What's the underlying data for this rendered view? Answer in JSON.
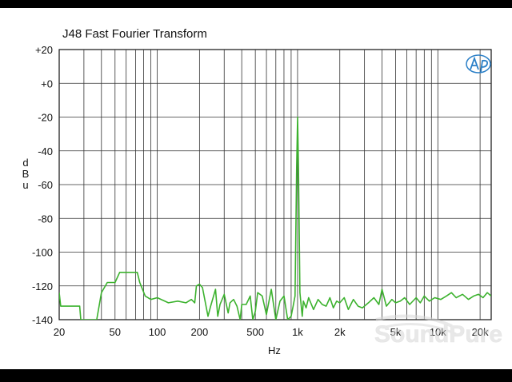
{
  "chart_data": {
    "type": "line",
    "title": "J48 Fast Fourier Transform",
    "xlabel": "Hz",
    "ylabel": "dBu",
    "x_scale": "log",
    "xlim": [
      20,
      24000
    ],
    "ylim": [
      -140,
      20
    ],
    "grid": true,
    "y_ticks": [
      {
        "value": 20,
        "label": "+20"
      },
      {
        "value": 0,
        "label": "+0"
      },
      {
        "value": -20,
        "label": "-20"
      },
      {
        "value": -40,
        "label": "-40"
      },
      {
        "value": -60,
        "label": "-60"
      },
      {
        "value": -80,
        "label": "-80"
      },
      {
        "value": -100,
        "label": "-100"
      },
      {
        "value": -120,
        "label": "-120"
      },
      {
        "value": -140,
        "label": "-140"
      }
    ],
    "x_ticks": [
      {
        "value": 20,
        "label": "20"
      },
      {
        "value": 50,
        "label": "50"
      },
      {
        "value": 100,
        "label": "100"
      },
      {
        "value": 200,
        "label": "200"
      },
      {
        "value": 500,
        "label": "500"
      },
      {
        "value": 1000,
        "label": "1k"
      },
      {
        "value": 2000,
        "label": "2k"
      },
      {
        "value": 5000,
        "label": "5k"
      },
      {
        "value": 10000,
        "label": "10k"
      },
      {
        "value": 20000,
        "label": "20k"
      }
    ],
    "series": [
      {
        "color": "#3cb22e",
        "x": [
          20,
          20.5,
          28,
          28.5,
          37,
          40,
          44,
          50,
          54,
          72,
          75,
          82,
          90,
          100,
          120,
          140,
          160,
          175,
          185,
          190,
          200,
          210,
          230,
          240,
          260,
          270,
          280,
          300,
          320,
          330,
          350,
          370,
          390,
          400,
          430,
          460,
          480,
          500,
          520,
          560,
          600,
          650,
          700,
          750,
          800,
          850,
          900,
          930,
          960,
          985,
          1000,
          1015,
          1040,
          1080,
          1100,
          1150,
          1200,
          1300,
          1400,
          1500,
          1600,
          1700,
          1800,
          1900,
          2000,
          2150,
          2300,
          2500,
          2700,
          2900,
          3200,
          3500,
          3800,
          4000,
          4300,
          4700,
          5000,
          5400,
          5800,
          6300,
          7000,
          7500,
          8000,
          8700,
          9500,
          10500,
          11500,
          12500,
          13500,
          15000,
          16500,
          18000,
          19500,
          21000,
          22500,
          24000
        ],
        "y": [
          -124,
          -132,
          -132,
          -140,
          -140,
          -124,
          -118,
          -118,
          -112,
          -112,
          -118,
          -126,
          -128,
          -127,
          -130,
          -129,
          -130,
          -128,
          -130,
          -120,
          -119,
          -121,
          -138,
          -132,
          -122,
          -138,
          -131,
          -125,
          -136,
          -130,
          -128,
          -132,
          -140,
          -131,
          -131,
          -126,
          -140,
          -135,
          -124,
          -126,
          -137,
          -122,
          -140,
          -129,
          -126,
          -140,
          -138,
          -132,
          -126,
          -50,
          -20,
          -50,
          -124,
          -138,
          -129,
          -133,
          -127,
          -134,
          -128,
          -131,
          -132,
          -127,
          -133,
          -129,
          -130,
          -127,
          -134,
          -128,
          -132,
          -133,
          -130,
          -127,
          -131,
          -122,
          -132,
          -128,
          -130,
          -129,
          -127,
          -131,
          -127,
          -130,
          -126,
          -129,
          -127,
          -128,
          -126,
          -124,
          -127,
          -125,
          -128,
          -126,
          -125,
          -127,
          -124,
          -126
        ]
      }
    ]
  }
}
